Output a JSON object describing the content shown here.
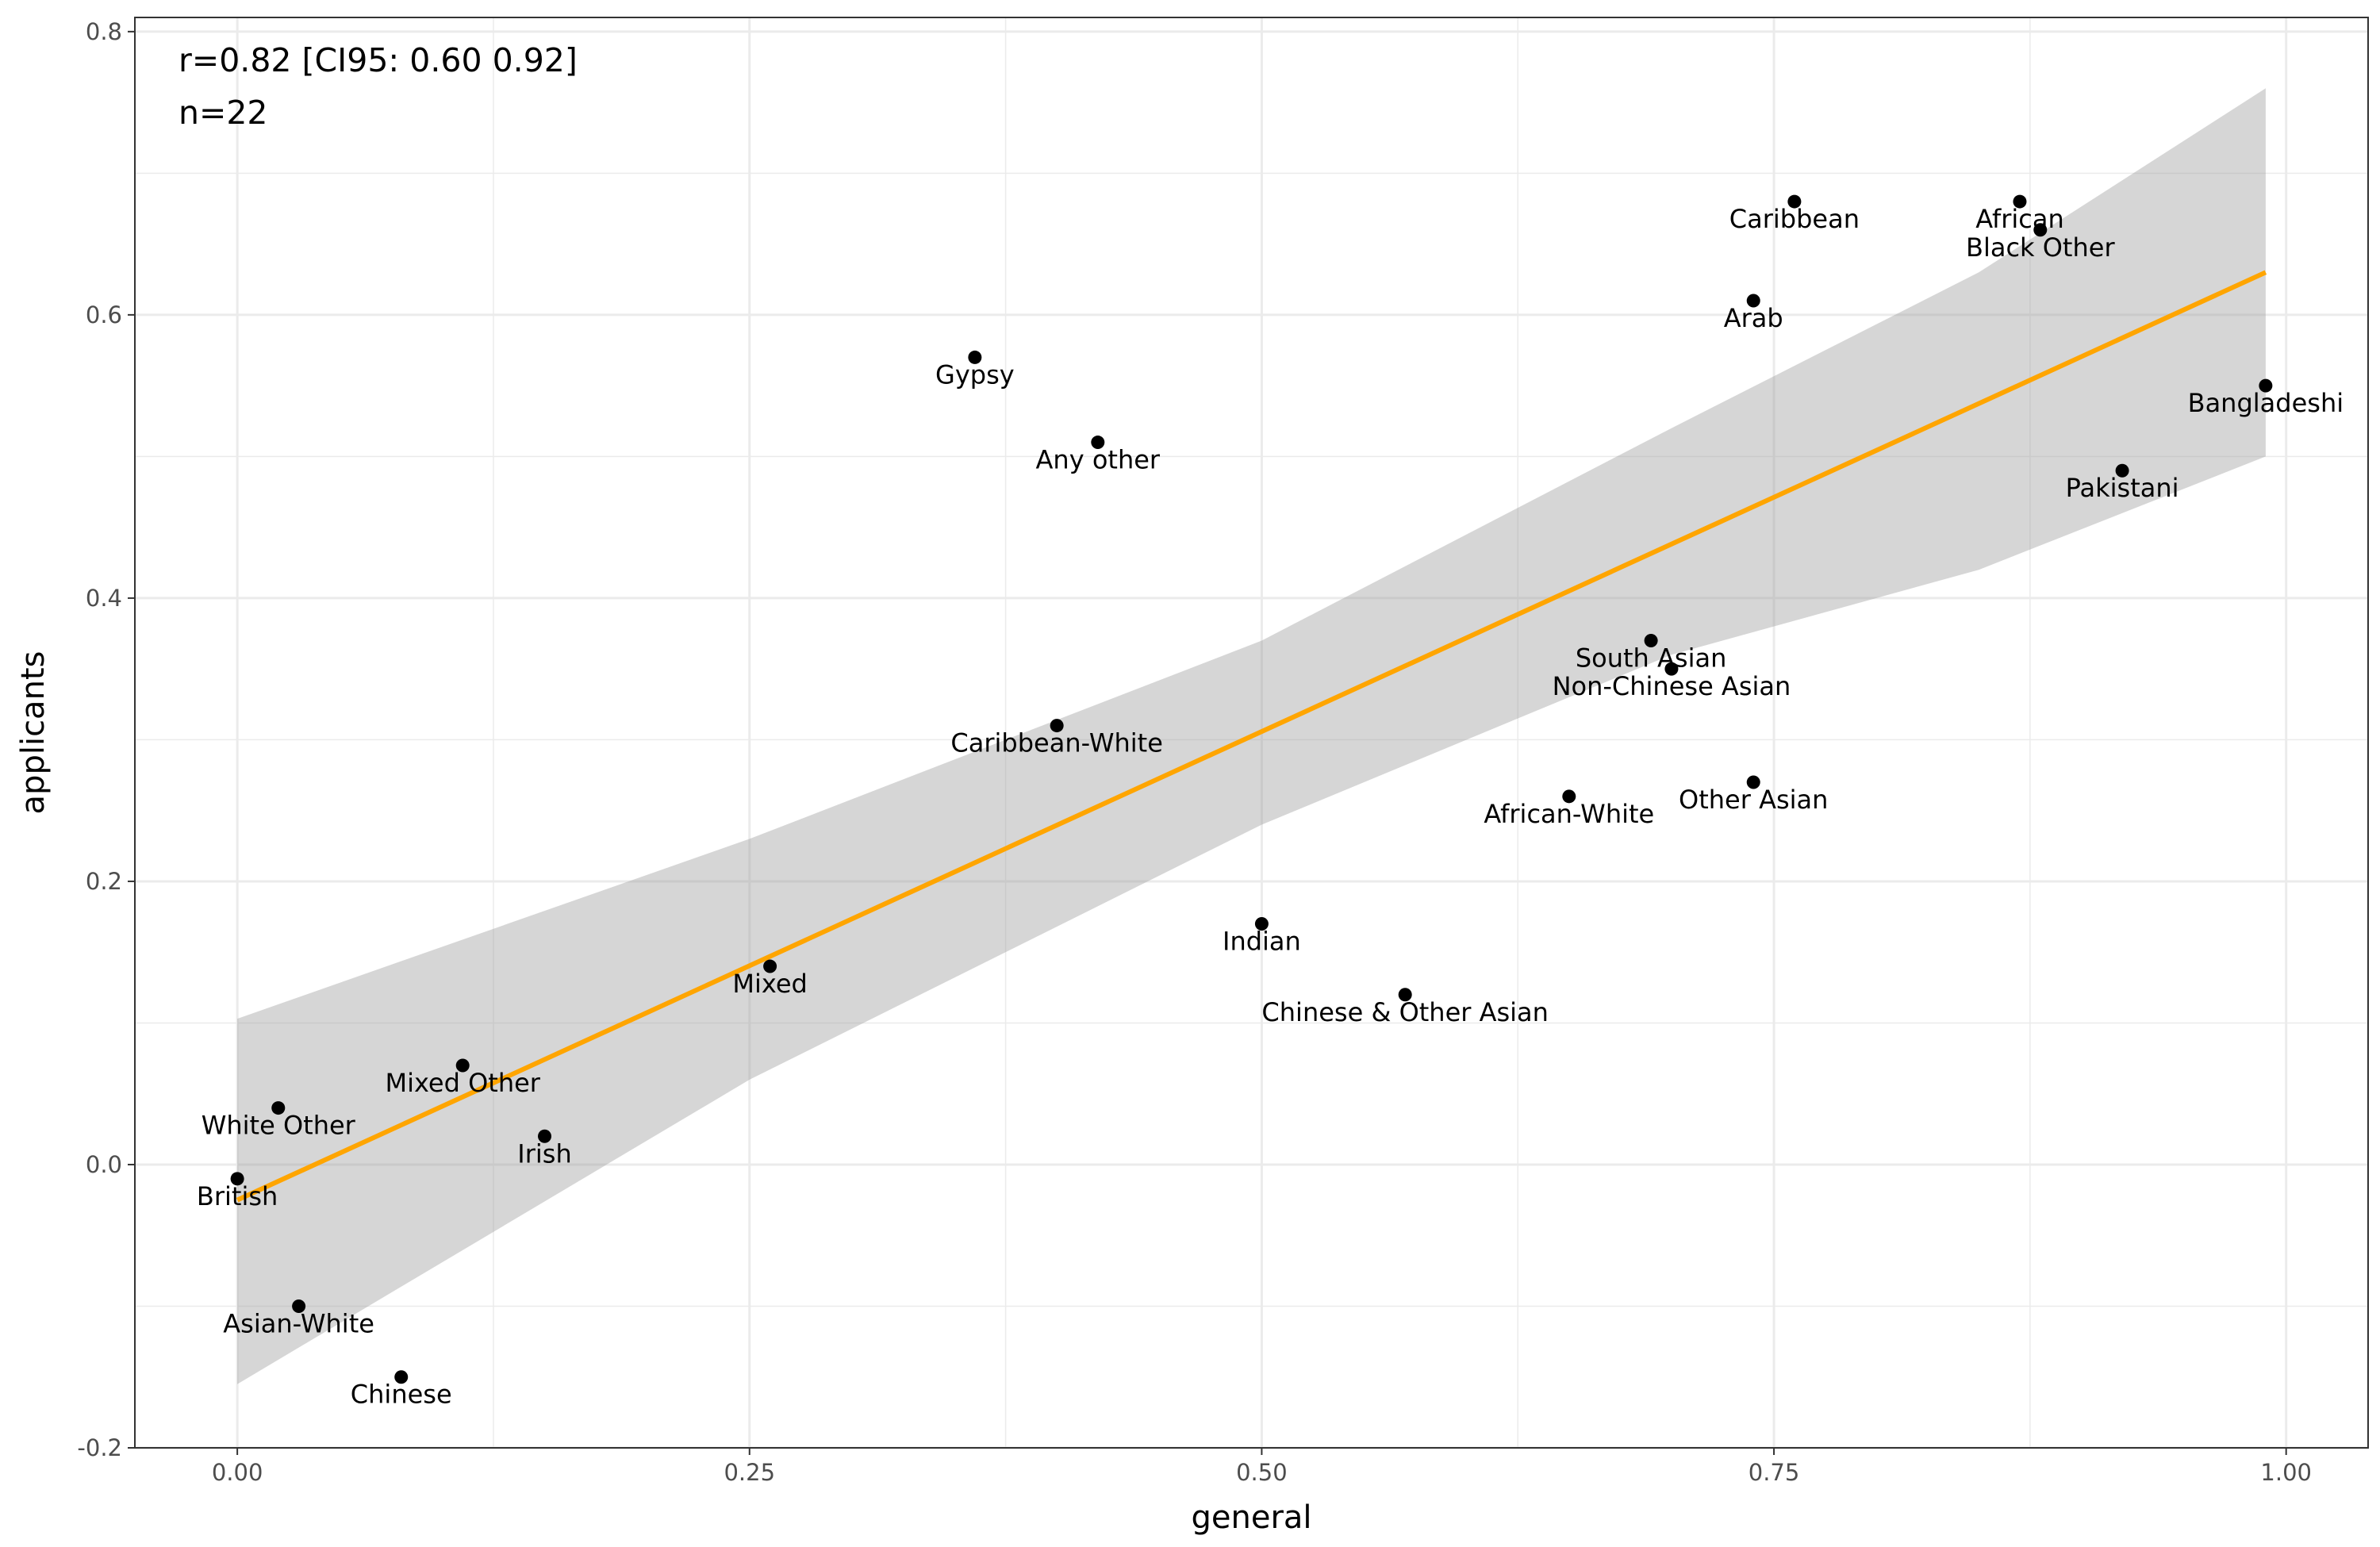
{
  "chart_data": {
    "type": "scatter",
    "xlabel": "general",
    "ylabel": "applicants",
    "xlim": [
      -0.05,
      1.04
    ],
    "ylim": [
      -0.2,
      0.81
    ],
    "x_ticks": [
      {
        "value": 0.0,
        "label": "0.00"
      },
      {
        "value": 0.25,
        "label": "0.25"
      },
      {
        "value": 0.5,
        "label": "0.50"
      },
      {
        "value": 0.75,
        "label": "0.75"
      },
      {
        "value": 1.0,
        "label": "1.00"
      }
    ],
    "y_ticks": [
      {
        "value": -0.2,
        "label": "-0.2"
      },
      {
        "value": 0.0,
        "label": "0.0"
      },
      {
        "value": 0.2,
        "label": "0.2"
      },
      {
        "value": 0.4,
        "label": "0.4"
      },
      {
        "value": 0.6,
        "label": "0.6"
      },
      {
        "value": 0.8,
        "label": "0.8"
      }
    ],
    "grid": true,
    "annotations": [
      "r=0.82 [CI95: 0.60 0.92]",
      "n=22"
    ],
    "points": [
      {
        "label": "Caribbean",
        "x": 0.76,
        "y": 0.68
      },
      {
        "label": "African",
        "x": 0.87,
        "y": 0.68
      },
      {
        "label": "Black Other",
        "x": 0.88,
        "y": 0.66
      },
      {
        "label": "Arab",
        "x": 0.74,
        "y": 0.61
      },
      {
        "label": "Gypsy",
        "x": 0.36,
        "y": 0.57
      },
      {
        "label": "Bangladeshi",
        "x": 0.99,
        "y": 0.55
      },
      {
        "label": "Any other",
        "x": 0.42,
        "y": 0.51
      },
      {
        "label": "Pakistani",
        "x": 0.92,
        "y": 0.49
      },
      {
        "label": "South Asian",
        "x": 0.69,
        "y": 0.37
      },
      {
        "label": "Non-Chinese Asian",
        "x": 0.7,
        "y": 0.35
      },
      {
        "label": "Caribbean-White",
        "x": 0.4,
        "y": 0.31
      },
      {
        "label": "African-White",
        "x": 0.65,
        "y": 0.26
      },
      {
        "label": "Other Asian",
        "x": 0.74,
        "y": 0.27
      },
      {
        "label": "Indian",
        "x": 0.5,
        "y": 0.17
      },
      {
        "label": "Mixed",
        "x": 0.26,
        "y": 0.14
      },
      {
        "label": "Chinese & Other Asian",
        "x": 0.57,
        "y": 0.12
      },
      {
        "label": "Mixed Other",
        "x": 0.11,
        "y": 0.07
      },
      {
        "label": "White Other",
        "x": 0.02,
        "y": 0.04
      },
      {
        "label": "Irish",
        "x": 0.15,
        "y": 0.02
      },
      {
        "label": "British",
        "x": 0.0,
        "y": -0.01
      },
      {
        "label": "Asian-White",
        "x": 0.03,
        "y": -0.1
      },
      {
        "label": "Chinese",
        "x": 0.08,
        "y": -0.15
      }
    ],
    "fit_line": {
      "color": "#ffa500",
      "x": [
        0.0,
        0.99
      ],
      "y": [
        -0.025,
        0.63
      ]
    },
    "confidence_band": {
      "color": "#999999",
      "x": [
        0.0,
        0.25,
        0.5,
        0.7,
        0.85,
        0.99
      ],
      "lower": [
        -0.155,
        0.06,
        0.24,
        0.36,
        0.42,
        0.5
      ],
      "upper": [
        0.103,
        0.23,
        0.37,
        0.52,
        0.63,
        0.76
      ]
    },
    "colors": {
      "point": "#000000",
      "grid": "#ebebeb",
      "panel_border": "#333333"
    }
  }
}
